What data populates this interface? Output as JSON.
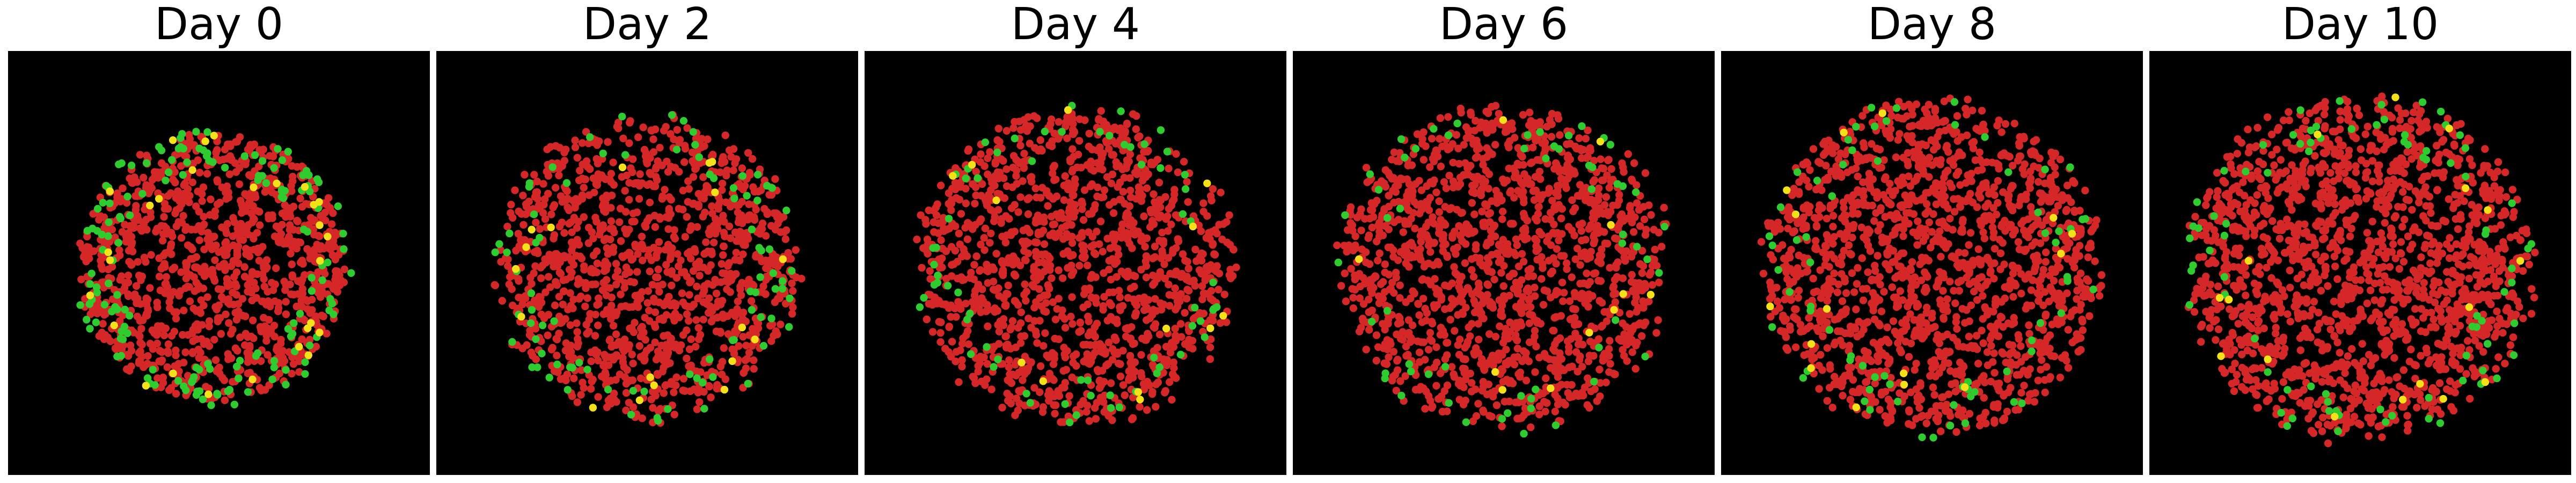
{
  "figure": {
    "background_color": "#ffffff",
    "panel_background": "#000000",
    "cell_colors": {
      "red": "#d62728",
      "green": "#2ecc2e",
      "yellow": "#f5e11a"
    },
    "panels": [
      {
        "title": "Day 0",
        "day": 0,
        "colony_radius_fraction": 0.31,
        "green_fraction": 0.14,
        "yellow_fraction": 0.025,
        "edge_enriched_green": true
      },
      {
        "title": "Day 2",
        "day": 2,
        "colony_radius_fraction": 0.34,
        "green_fraction": 0.07,
        "yellow_fraction": 0.015,
        "edge_enriched_green": true
      },
      {
        "title": "Day 4",
        "day": 4,
        "colony_radius_fraction": 0.36,
        "green_fraction": 0.05,
        "yellow_fraction": 0.01,
        "edge_enriched_green": true
      },
      {
        "title": "Day 6",
        "day": 6,
        "colony_radius_fraction": 0.37,
        "green_fraction": 0.04,
        "yellow_fraction": 0.008,
        "edge_enriched_green": true
      },
      {
        "title": "Day 8",
        "day": 8,
        "colony_radius_fraction": 0.38,
        "green_fraction": 0.045,
        "yellow_fraction": 0.01,
        "edge_enriched_green": true
      },
      {
        "title": "Day 10",
        "day": 10,
        "colony_radius_fraction": 0.39,
        "green_fraction": 0.05,
        "yellow_fraction": 0.01,
        "edge_enriched_green": true
      }
    ]
  }
}
